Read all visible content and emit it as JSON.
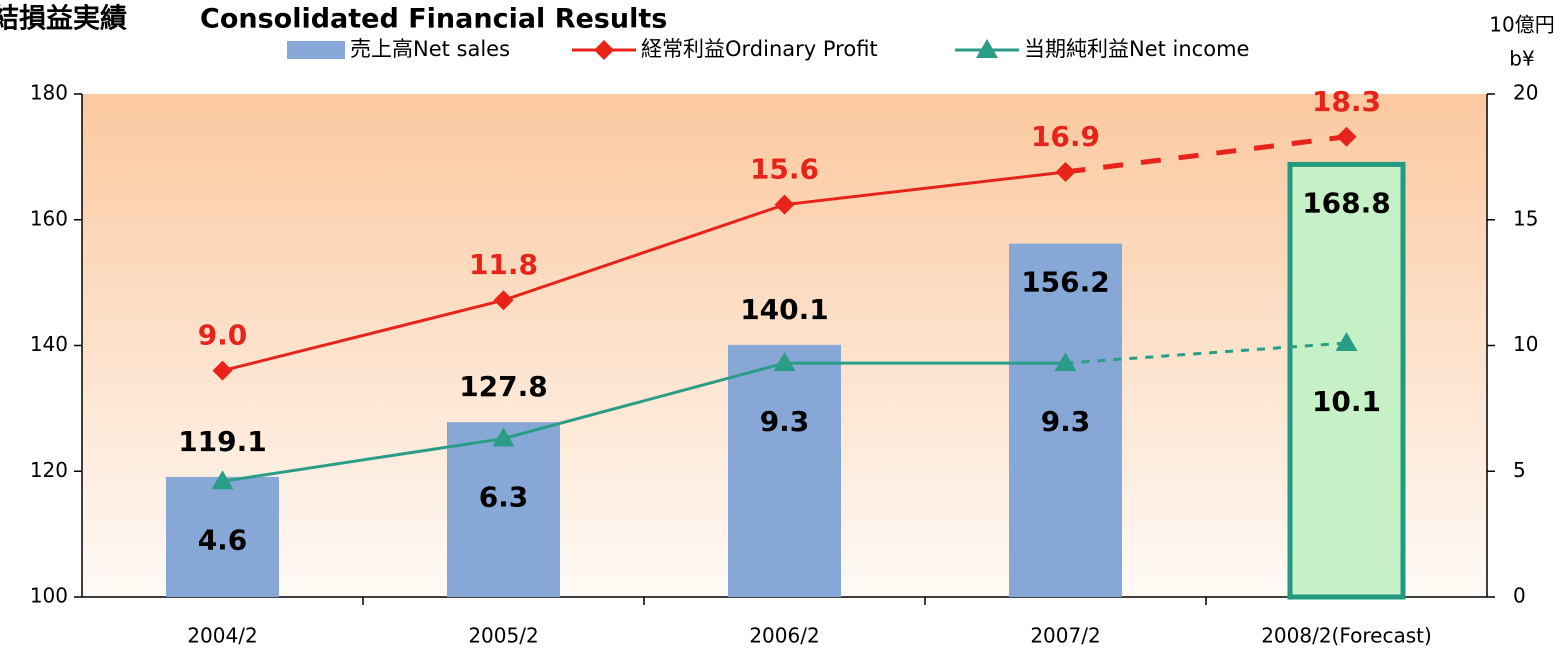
{
  "chart_data": {
    "type": "combo",
    "title": "結損益実績",
    "subtitle": "Consolidated Financial Results",
    "y2_unit": [
      "10億円",
      "b¥"
    ],
    "categories": [
      "2004/2",
      "2005/2",
      "2006/2",
      "2007/2",
      "2008/2(Forecast)"
    ],
    "series": [
      {
        "name": "売上高Net sales",
        "type": "bar",
        "color": "#87a7d6",
        "highlight_color": "#c6f0c6",
        "highlight_border": "#239a80",
        "values": [
          119.1,
          127.8,
          140.1,
          156.2,
          168.8
        ]
      },
      {
        "name": "経常利益Ordinary Profit",
        "type": "line",
        "axis": "y2",
        "color": "#e8231a",
        "marker": "diamond",
        "values": [
          9.0,
          11.8,
          15.6,
          16.9,
          18.3
        ],
        "value_labels": [
          "9.0",
          "11.8",
          "15.6",
          "16.9",
          "18.3"
        ]
      },
      {
        "name": "当期純利益Net income",
        "type": "line",
        "axis": "y2",
        "color": "#2a9d86",
        "marker": "triangle",
        "values": [
          4.6,
          6.3,
          9.3,
          9.3,
          10.1
        ]
      }
    ],
    "dashed_last_segment": true,
    "ylim": [
      100,
      180
    ],
    "yticks": [
      100,
      120,
      140,
      160,
      180
    ],
    "y2lim": [
      0,
      20
    ],
    "y2ticks": [
      0,
      5,
      10,
      15,
      20
    ]
  }
}
